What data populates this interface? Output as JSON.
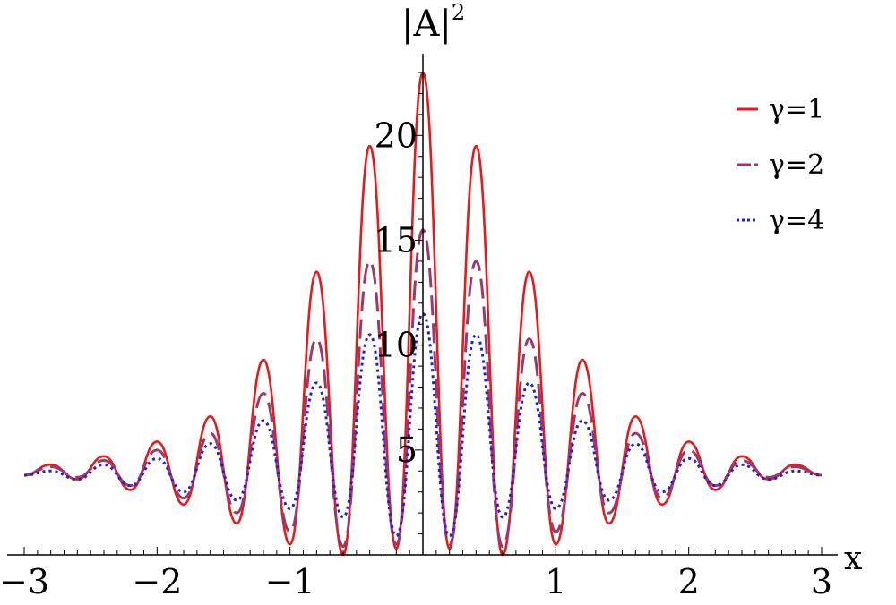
{
  "chart_data": {
    "type": "line",
    "xlabel": "x",
    "ylabel": "|A|",
    "ylabel_sup": "2",
    "xlim": [
      -3,
      3
    ],
    "ylim": [
      0,
      23
    ],
    "x_ticks": [
      -3,
      -2,
      -1,
      1,
      2,
      3
    ],
    "x_tick_labels": [
      "−3",
      "−2",
      "−1",
      "1",
      "2",
      "3"
    ],
    "y_ticks": [
      5,
      10,
      15,
      20
    ],
    "y_tick_labels": [
      "5",
      "10",
      "15",
      "20"
    ],
    "grid": false,
    "legend_position": "top-right",
    "x": [
      -3.0,
      -2.8,
      -2.6,
      -2.4,
      -2.2,
      -2.0,
      -1.8,
      -1.6,
      -1.4,
      -1.2,
      -1.0,
      -0.8,
      -0.6,
      -0.4,
      -0.2,
      0.0,
      0.2,
      0.4,
      0.6,
      0.8,
      1.0,
      1.2,
      1.4,
      1.6,
      1.8,
      2.0,
      2.2,
      2.4,
      2.6,
      2.8,
      3.0
    ],
    "series": [
      {
        "name": "γ=1",
        "color": "#e41a1c",
        "style": "solid",
        "values": [
          3.8,
          4.3,
          3.6,
          4.7,
          3.1,
          5.4,
          2.4,
          6.6,
          1.5,
          9.3,
          0.5,
          13.5,
          0.0,
          19.5,
          0.3,
          23.0,
          0.3,
          19.5,
          0.0,
          13.5,
          0.5,
          9.3,
          1.5,
          6.6,
          2.4,
          5.4,
          3.1,
          4.7,
          3.6,
          4.3,
          3.8
        ]
      },
      {
        "name": "γ=2",
        "color": "#9b3a6a",
        "style": "dashed",
        "values": [
          3.8,
          4.2,
          3.7,
          4.5,
          3.3,
          5.0,
          2.7,
          5.8,
          2.0,
          7.7,
          1.1,
          10.3,
          0.4,
          14.0,
          0.5,
          15.5,
          0.5,
          14.0,
          0.4,
          10.3,
          1.1,
          7.7,
          2.0,
          5.8,
          2.7,
          5.0,
          3.3,
          4.5,
          3.7,
          4.2,
          3.8
        ]
      },
      {
        "name": "γ=4",
        "color": "#1f1fdc",
        "style": "dotted",
        "values": [
          3.8,
          4.0,
          3.6,
          4.3,
          3.3,
          4.6,
          3.0,
          5.3,
          2.6,
          6.4,
          2.2,
          8.2,
          1.8,
          10.5,
          0.9,
          11.5,
          0.9,
          10.5,
          1.8,
          8.2,
          2.2,
          6.4,
          2.6,
          5.3,
          3.0,
          4.6,
          3.3,
          4.3,
          3.6,
          4.0,
          3.8
        ]
      }
    ]
  }
}
